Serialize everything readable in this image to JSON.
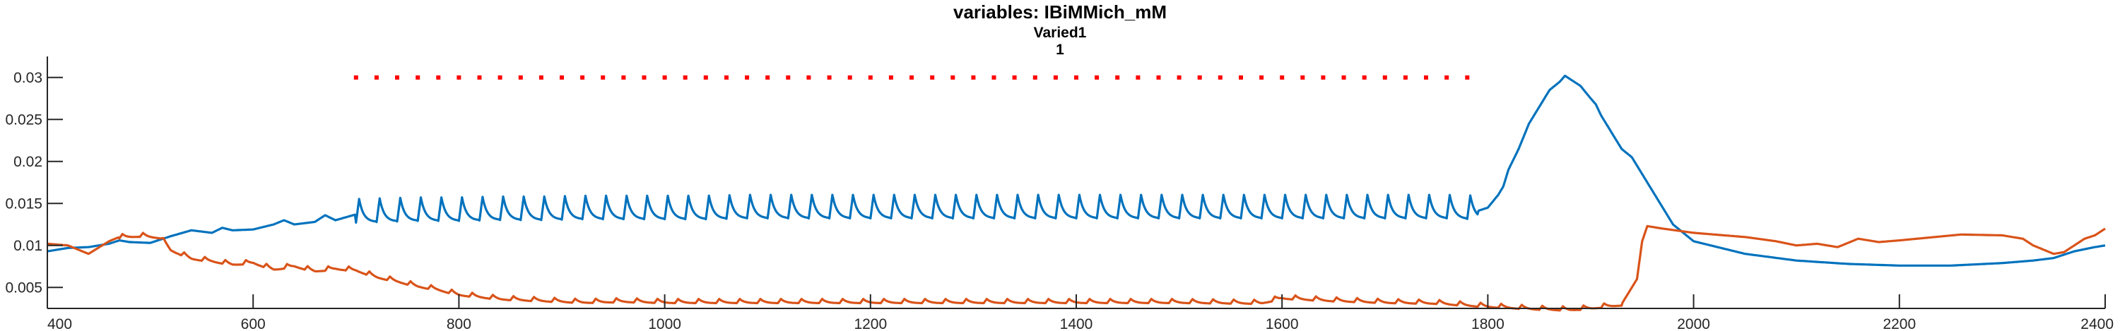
{
  "chart_data": {
    "type": "line",
    "title": "variables: IBiMMich_mM",
    "subtitle_lines": [
      "Varied1",
      "1"
    ],
    "xlabel": "",
    "ylabel": "",
    "xlim": [
      400,
      2400
    ],
    "ylim": [
      0.0025,
      0.0325
    ],
    "grid": false,
    "legend": "none",
    "x_ticks": [
      400,
      600,
      800,
      1000,
      1200,
      1400,
      1600,
      1800,
      2000,
      2200,
      2400
    ],
    "x_tick_labels": [
      "400",
      "600",
      "800",
      "1000",
      "1200",
      "1400",
      "1600",
      "1800",
      "2000",
      "2200",
      "2400"
    ],
    "y_ticks": [
      0.005,
      0.01,
      0.015,
      0.02,
      0.025,
      0.03
    ],
    "y_tick_labels": [
      "0.005",
      "0.01",
      "0.015",
      "0.02",
      "0.025",
      "0.03"
    ],
    "colors": {
      "blue": "#0072BD",
      "orange": "#D95319",
      "red": "#FF0000",
      "axis": "#262626"
    },
    "series": [
      {
        "color": "#0072BD",
        "style": "solid",
        "x": [
          400,
          420,
          440,
          460,
          470,
          480,
          500,
          520,
          540,
          560,
          570,
          580,
          600,
          620,
          630,
          640,
          660,
          670,
          680,
          700,
          730,
          760,
          800,
          840,
          880,
          920,
          960,
          1000,
          1040,
          1080,
          1120,
          1160,
          1200,
          1240,
          1280,
          1320,
          1360,
          1400,
          1440,
          1480,
          1520,
          1560,
          1600,
          1640,
          1680,
          1720,
          1760,
          1790,
          1800,
          1810,
          1815,
          1820,
          1830,
          1840,
          1850,
          1860,
          1870,
          1875,
          1880,
          1890,
          1900,
          1905,
          1910,
          1920,
          1930,
          1940,
          1960,
          1980,
          2000,
          2050,
          2100,
          2150,
          2200,
          2250,
          2300,
          2330,
          2350,
          2370,
          2390,
          2400
        ],
        "y": [
          0.0093,
          0.0097,
          0.0098,
          0.0102,
          0.0106,
          0.0104,
          0.0103,
          0.0111,
          0.0118,
          0.0115,
          0.0121,
          0.0118,
          0.0119,
          0.0125,
          0.013,
          0.0125,
          0.0128,
          0.0136,
          0.013,
          0.0137,
          0.0138,
          0.0139,
          0.0139,
          0.014,
          0.014,
          0.0141,
          0.0141,
          0.0141,
          0.0141,
          0.0142,
          0.0142,
          0.0142,
          0.0142,
          0.0142,
          0.0142,
          0.0142,
          0.0142,
          0.0142,
          0.0142,
          0.0142,
          0.0142,
          0.0142,
          0.0142,
          0.0142,
          0.0142,
          0.0142,
          0.0142,
          0.0141,
          0.0145,
          0.016,
          0.017,
          0.019,
          0.0215,
          0.0245,
          0.0265,
          0.0285,
          0.0295,
          0.0302,
          0.0298,
          0.029,
          0.0275,
          0.0268,
          0.0255,
          0.0235,
          0.0215,
          0.0205,
          0.0165,
          0.0125,
          0.0105,
          0.009,
          0.0082,
          0.0078,
          0.0076,
          0.0076,
          0.0079,
          0.0082,
          0.0085,
          0.0093,
          0.0098,
          0.01
        ],
        "oscillation": {
          "start": 700,
          "end": 1790,
          "period": 20,
          "amplitude": 0.0028
        }
      },
      {
        "color": "#D95319",
        "style": "solid",
        "x": [
          400,
          420,
          440,
          460,
          470,
          490,
          510,
          520,
          540,
          560,
          580,
          600,
          620,
          640,
          660,
          680,
          700,
          720,
          740,
          760,
          780,
          800,
          840,
          880,
          920,
          960,
          1000,
          1100,
          1200,
          1300,
          1400,
          1500,
          1580,
          1600,
          1650,
          1700,
          1750,
          1800,
          1850,
          1880,
          1900,
          1930,
          1945,
          1950,
          1955,
          1970,
          2000,
          2050,
          2080,
          2100,
          2120,
          2140,
          2160,
          2180,
          2200,
          2260,
          2300,
          2320,
          2330,
          2340,
          2350,
          2360,
          2370,
          2380,
          2390,
          2400
        ],
        "y": [
          0.0102,
          0.01,
          0.009,
          0.0105,
          0.011,
          0.0112,
          0.011,
          0.0095,
          0.0085,
          0.0082,
          0.0078,
          0.008,
          0.0072,
          0.0076,
          0.007,
          0.0073,
          0.0071,
          0.0063,
          0.0058,
          0.0052,
          0.0048,
          0.0042,
          0.0037,
          0.0035,
          0.0033,
          0.0034,
          0.0033,
          0.0033,
          0.0033,
          0.0033,
          0.0033,
          0.0033,
          0.0032,
          0.0038,
          0.0035,
          0.0033,
          0.0032,
          0.0028,
          0.0025,
          0.0024,
          0.0026,
          0.003,
          0.006,
          0.0105,
          0.0123,
          0.012,
          0.0115,
          0.011,
          0.0105,
          0.01,
          0.0102,
          0.0098,
          0.0108,
          0.0104,
          0.0106,
          0.0113,
          0.0112,
          0.0108,
          0.01,
          0.0095,
          0.009,
          0.0092,
          0.01,
          0.0108,
          0.0112,
          0.012
        ],
        "oscillation": {
          "start": 470,
          "end": 1930,
          "period": 20,
          "amplitude": 0.0005
        }
      },
      {
        "color": "#FF0000",
        "style": "dotted",
        "x": [
          700,
          1780
        ],
        "y": [
          0.03,
          0.03
        ]
      }
    ]
  }
}
